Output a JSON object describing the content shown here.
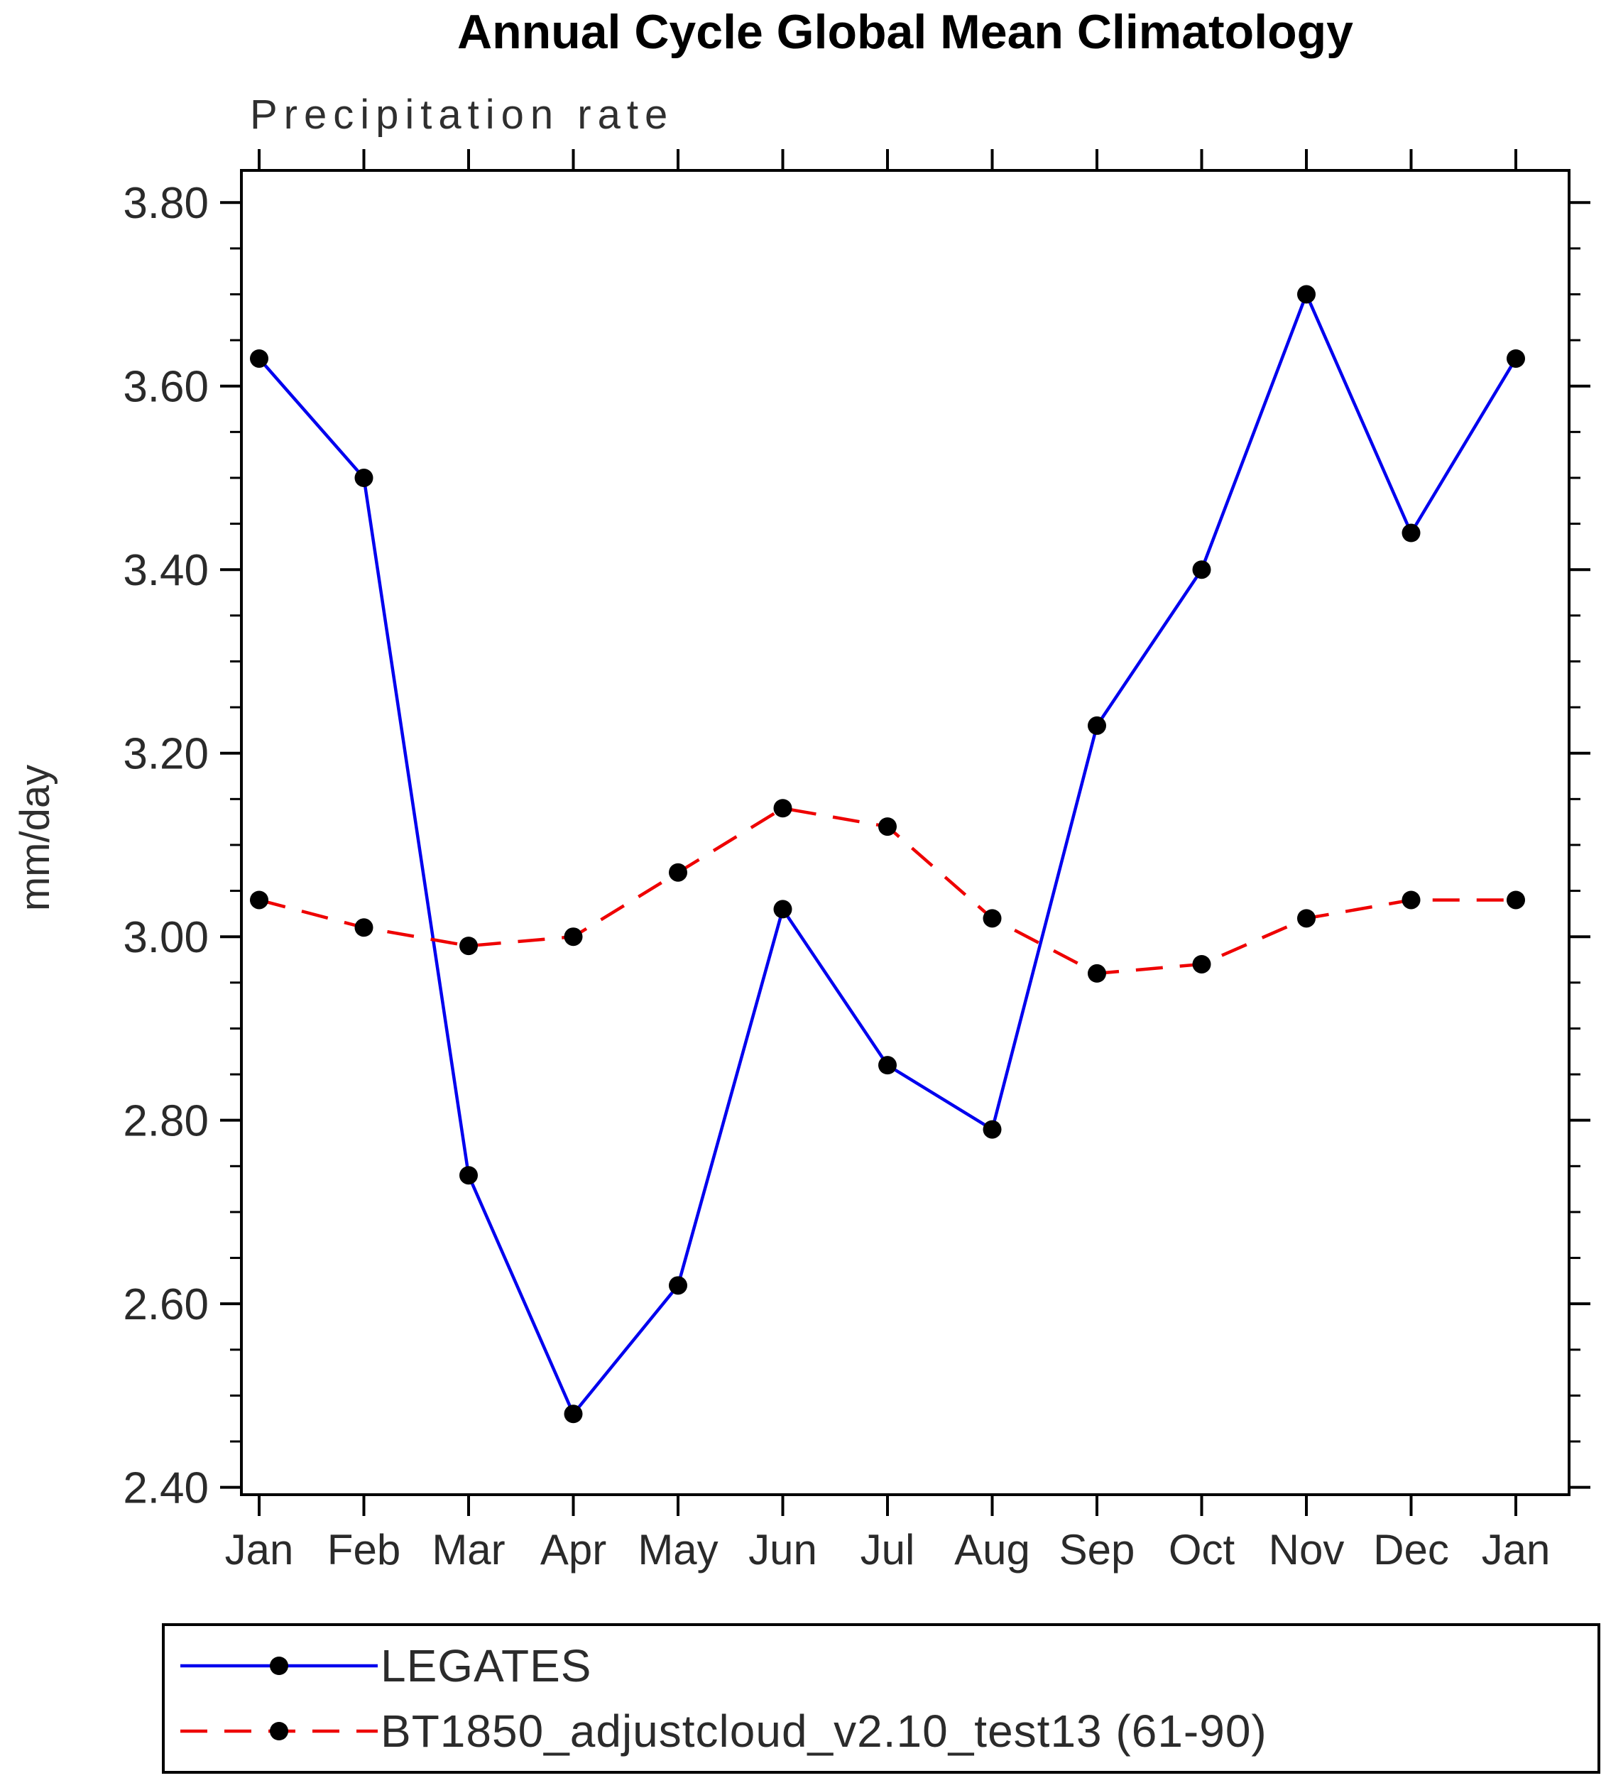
{
  "chart_data": {
    "type": "line",
    "title": "Annual Cycle Global Mean Climatology",
    "subtitle": "Precipitation rate",
    "ylabel": "mm/day",
    "xlabel": "",
    "categories": [
      "Jan",
      "Feb",
      "Mar",
      "Apr",
      "May",
      "Jun",
      "Jul",
      "Aug",
      "Sep",
      "Oct",
      "Nov",
      "Dec",
      "Jan"
    ],
    "ylim": [
      2.4,
      3.8
    ],
    "ytick_step": 0.2,
    "ytick_minor_step": 0.05,
    "ytick_labels": [
      "2.40",
      "2.60",
      "2.80",
      "3.00",
      "3.20",
      "3.40",
      "3.60",
      "3.80"
    ],
    "grid": false,
    "legend_position": "bottom",
    "axis_color": "#000000",
    "text_color": "#2a2a2a",
    "series": [
      {
        "name": "LEGATES",
        "color": "#0000ee",
        "line_style": "solid",
        "marker": "circle",
        "marker_color": "#000000",
        "values": [
          3.63,
          3.5,
          2.74,
          2.48,
          2.62,
          3.03,
          2.86,
          2.79,
          3.23,
          3.4,
          3.7,
          3.44,
          3.63
        ]
      },
      {
        "name": "BT1850_adjustcloud_v2.10_test13 (61-90)",
        "color": "#ee0000",
        "line_style": "dashed",
        "marker": "circle",
        "marker_color": "#000000",
        "values": [
          3.04,
          3.01,
          2.99,
          3.0,
          3.07,
          3.14,
          3.12,
          3.02,
          2.96,
          2.97,
          3.02,
          3.04,
          3.04
        ]
      }
    ]
  }
}
